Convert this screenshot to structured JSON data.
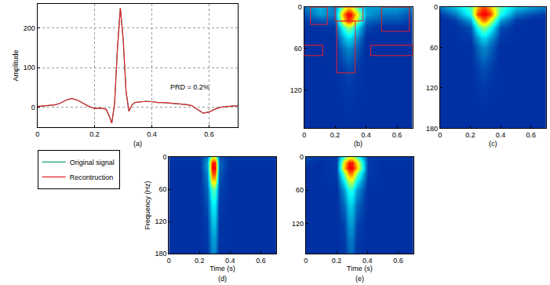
{
  "chart_data": [
    {
      "type": "line",
      "title": "(a)",
      "x": [
        0,
        0.02,
        0.04,
        0.06,
        0.08,
        0.1,
        0.12,
        0.14,
        0.16,
        0.18,
        0.2,
        0.22,
        0.24,
        0.25,
        0.26,
        0.27,
        0.28,
        0.29,
        0.3,
        0.31,
        0.32,
        0.33,
        0.34,
        0.36,
        0.38,
        0.4,
        0.42,
        0.44,
        0.46,
        0.48,
        0.5,
        0.52,
        0.54,
        0.56,
        0.58,
        0.6,
        0.62,
        0.64,
        0.66,
        0.68,
        0.7
      ],
      "series": [
        {
          "name": "Original signal",
          "color": "#1b9e77",
          "values": [
            2,
            3,
            5,
            6,
            10,
            18,
            22,
            18,
            10,
            2,
            -3,
            -2,
            -5,
            -20,
            -40,
            10,
            150,
            250,
            170,
            40,
            -10,
            5,
            12,
            14,
            15,
            14,
            12,
            12,
            11,
            10,
            9,
            7,
            4,
            -5,
            -15,
            -12,
            -5,
            0,
            2,
            3,
            4
          ]
        },
        {
          "name": "Recontruction",
          "color": "#e8202a",
          "values": [
            2,
            3,
            5,
            6,
            10,
            18,
            22,
            18,
            10,
            2,
            -3,
            -2,
            -5,
            -20,
            -40,
            10,
            150,
            250,
            170,
            40,
            -10,
            5,
            12,
            14,
            15,
            14,
            12,
            12,
            11,
            10,
            9,
            7,
            4,
            -5,
            -15,
            -12,
            -5,
            0,
            2,
            3,
            4
          ]
        }
      ],
      "xlim": [
        0,
        0.7
      ],
      "xticks": [
        0,
        0.2,
        0.4,
        0.6
      ],
      "ylim": [
        -50,
        260
      ],
      "yticks": [
        0,
        100,
        200
      ],
      "y_label": "Amplitude",
      "annotations": [
        {
          "text": "PRD = 0.2%",
          "x": 0.46,
          "y": 50
        }
      ],
      "grid": true,
      "legend": "lower left"
    },
    {
      "type": "heatmap",
      "title": "(b)",
      "x": [
        0,
        0.1,
        0.2,
        0.25,
        0.28,
        0.3,
        0.33,
        0.4,
        0.5,
        0.6,
        0.7
      ],
      "y": [
        0,
        10,
        20,
        30,
        45,
        60,
        90,
        120,
        150,
        180
      ],
      "cells": [
        [
          0.2,
          0.28,
          0.2,
          0.5,
          0.65,
          0.65,
          0.5,
          0.25,
          0.25,
          0.25,
          0.2
        ],
        [
          0.15,
          0.25,
          0.2,
          0.7,
          0.88,
          0.88,
          0.7,
          0.25,
          0.2,
          0.2,
          0.15
        ],
        [
          0.12,
          0.15,
          0.15,
          0.6,
          0.8,
          0.8,
          0.6,
          0.18,
          0.15,
          0.15,
          0.12
        ],
        [
          0.1,
          0.1,
          0.12,
          0.38,
          0.5,
          0.5,
          0.38,
          0.14,
          0.1,
          0.1,
          0.1
        ],
        [
          0.1,
          0.1,
          0.1,
          0.25,
          0.32,
          0.32,
          0.25,
          0.1,
          0.1,
          0.1,
          0.1
        ],
        [
          0.1,
          0.1,
          0.1,
          0.18,
          0.22,
          0.22,
          0.18,
          0.1,
          0.1,
          0.1,
          0.1
        ],
        [
          0.1,
          0.1,
          0.1,
          0.12,
          0.14,
          0.14,
          0.12,
          0.1,
          0.1,
          0.1,
          0.1
        ],
        [
          0.1,
          0.1,
          0.1,
          0.11,
          0.12,
          0.12,
          0.11,
          0.1,
          0.1,
          0.1,
          0.1
        ],
        [
          0.1,
          0.1,
          0.1,
          0.1,
          0.11,
          0.11,
          0.1,
          0.1,
          0.1,
          0.1,
          0.1
        ],
        [
          0.1,
          0.1,
          0.1,
          0.1,
          0.1,
          0.1,
          0.1,
          0.1,
          0.1,
          0.1,
          0.1
        ]
      ],
      "zlim": [
        0,
        1
      ],
      "xlim": [
        0,
        0.7
      ],
      "xticks": [
        0,
        0.2,
        0.4,
        0.6
      ],
      "ylim": [
        175,
        0
      ],
      "yticks": [
        0,
        60,
        120
      ],
      "regions": [
        {
          "x0": 0.04,
          "x1": 0.15,
          "y0": 0,
          "y1": 25
        },
        {
          "x0": 0,
          "x1": 0.12,
          "y0": 55,
          "y1": 70
        },
        {
          "x0": 0.2,
          "x1": 0.38,
          "y0": 0,
          "y1": 20
        },
        {
          "x0": 0.21,
          "x1": 0.33,
          "y0": 20,
          "y1": 95
        },
        {
          "x0": 0.5,
          "x1": 0.68,
          "y0": 0,
          "y1": 35
        },
        {
          "x0": 0.43,
          "x1": 0.7,
          "y0": 55,
          "y1": 70
        }
      ]
    },
    {
      "type": "heatmap",
      "title": "(c)",
      "x": [
        0,
        0.1,
        0.2,
        0.25,
        0.28,
        0.3,
        0.33,
        0.4,
        0.5,
        0.6,
        0.7
      ],
      "y": [
        0,
        10,
        20,
        30,
        45,
        60,
        90,
        120,
        150,
        180
      ],
      "cells": [
        [
          0.2,
          0.3,
          0.45,
          0.7,
          0.8,
          0.8,
          0.7,
          0.45,
          0.3,
          0.25,
          0.2
        ],
        [
          0.12,
          0.2,
          0.4,
          0.82,
          0.88,
          0.88,
          0.82,
          0.4,
          0.2,
          0.15,
          0.12
        ],
        [
          0.1,
          0.12,
          0.25,
          0.6,
          0.75,
          0.75,
          0.6,
          0.25,
          0.12,
          0.1,
          0.1
        ],
        [
          0.1,
          0.1,
          0.15,
          0.4,
          0.5,
          0.5,
          0.4,
          0.15,
          0.1,
          0.1,
          0.1
        ],
        [
          0.1,
          0.1,
          0.12,
          0.25,
          0.32,
          0.32,
          0.25,
          0.12,
          0.1,
          0.1,
          0.1
        ],
        [
          0.1,
          0.1,
          0.1,
          0.18,
          0.22,
          0.22,
          0.18,
          0.1,
          0.1,
          0.1,
          0.1
        ],
        [
          0.1,
          0.1,
          0.1,
          0.13,
          0.15,
          0.15,
          0.13,
          0.1,
          0.1,
          0.1,
          0.1
        ],
        [
          0.1,
          0.1,
          0.1,
          0.11,
          0.12,
          0.12,
          0.11,
          0.1,
          0.1,
          0.1,
          0.1
        ],
        [
          0.1,
          0.1,
          0.1,
          0.1,
          0.1,
          0.1,
          0.1,
          0.1,
          0.1,
          0.1,
          0.1
        ],
        [
          0.1,
          0.1,
          0.1,
          0.1,
          0.1,
          0.1,
          0.1,
          0.1,
          0.1,
          0.1,
          0.1
        ]
      ],
      "zlim": [
        0,
        1
      ],
      "xlim": [
        0,
        0.7
      ],
      "xticks": [
        0,
        0.2,
        0.4,
        0.6
      ],
      "ylim": [
        180,
        0
      ],
      "yticks": [
        0,
        60,
        120,
        180
      ]
    },
    {
      "type": "heatmap",
      "title": "(d)",
      "x": [
        0,
        0.1,
        0.2,
        0.25,
        0.28,
        0.3,
        0.33,
        0.4,
        0.5,
        0.6,
        0.7
      ],
      "y": [
        0,
        10,
        20,
        30,
        45,
        60,
        90,
        120,
        150,
        180
      ],
      "cells": [
        [
          0.12,
          0.12,
          0.12,
          0.2,
          0.6,
          0.6,
          0.15,
          0.12,
          0.12,
          0.12,
          0.12
        ],
        [
          0.1,
          0.1,
          0.1,
          0.25,
          0.85,
          0.85,
          0.18,
          0.1,
          0.1,
          0.1,
          0.1
        ],
        [
          0.1,
          0.1,
          0.1,
          0.25,
          0.88,
          0.88,
          0.18,
          0.1,
          0.1,
          0.1,
          0.1
        ],
        [
          0.1,
          0.1,
          0.1,
          0.22,
          0.8,
          0.8,
          0.16,
          0.1,
          0.1,
          0.1,
          0.1
        ],
        [
          0.1,
          0.1,
          0.1,
          0.2,
          0.65,
          0.65,
          0.15,
          0.1,
          0.1,
          0.1,
          0.1
        ],
        [
          0.1,
          0.1,
          0.1,
          0.18,
          0.45,
          0.45,
          0.14,
          0.1,
          0.1,
          0.1,
          0.1
        ],
        [
          0.1,
          0.1,
          0.1,
          0.15,
          0.35,
          0.35,
          0.12,
          0.1,
          0.1,
          0.1,
          0.1
        ],
        [
          0.1,
          0.1,
          0.1,
          0.13,
          0.3,
          0.3,
          0.11,
          0.1,
          0.1,
          0.1,
          0.1
        ],
        [
          0.1,
          0.1,
          0.1,
          0.12,
          0.25,
          0.25,
          0.11,
          0.1,
          0.1,
          0.1,
          0.1
        ],
        [
          0.1,
          0.1,
          0.1,
          0.11,
          0.22,
          0.22,
          0.1,
          0.1,
          0.1,
          0.1,
          0.1
        ]
      ],
      "zlim": [
        0,
        1
      ],
      "xlim": [
        0,
        0.7
      ],
      "xticks": [
        0,
        0.2,
        0.4,
        0.6
      ],
      "ylim": [
        180,
        0
      ],
      "yticks": [
        0,
        60,
        120,
        180
      ],
      "x_label": "Time (s)",
      "y_label": "Frequency (Hz)"
    },
    {
      "type": "heatmap",
      "title": "(e)",
      "x": [
        0,
        0.1,
        0.2,
        0.25,
        0.28,
        0.3,
        0.33,
        0.4,
        0.5,
        0.6,
        0.7
      ],
      "y": [
        0,
        10,
        20,
        30,
        45,
        60,
        90,
        120,
        150,
        180
      ],
      "cells": [
        [
          0.15,
          0.12,
          0.12,
          0.45,
          0.6,
          0.6,
          0.45,
          0.12,
          0.12,
          0.12,
          0.12
        ],
        [
          0.12,
          0.1,
          0.12,
          0.65,
          0.85,
          0.85,
          0.65,
          0.12,
          0.1,
          0.1,
          0.1
        ],
        [
          0.1,
          0.1,
          0.12,
          0.7,
          0.88,
          0.88,
          0.7,
          0.12,
          0.1,
          0.1,
          0.1
        ],
        [
          0.1,
          0.1,
          0.12,
          0.5,
          0.75,
          0.75,
          0.5,
          0.12,
          0.1,
          0.1,
          0.1
        ],
        [
          0.1,
          0.1,
          0.11,
          0.35,
          0.55,
          0.55,
          0.35,
          0.11,
          0.1,
          0.1,
          0.1
        ],
        [
          0.1,
          0.1,
          0.1,
          0.25,
          0.4,
          0.4,
          0.25,
          0.1,
          0.1,
          0.1,
          0.1
        ],
        [
          0.1,
          0.1,
          0.1,
          0.18,
          0.3,
          0.3,
          0.18,
          0.1,
          0.1,
          0.1,
          0.1
        ],
        [
          0.1,
          0.1,
          0.1,
          0.14,
          0.25,
          0.25,
          0.14,
          0.1,
          0.1,
          0.1,
          0.1
        ],
        [
          0.1,
          0.1,
          0.1,
          0.12,
          0.2,
          0.2,
          0.12,
          0.1,
          0.1,
          0.1,
          0.1
        ],
        [
          0.1,
          0.1,
          0.1,
          0.11,
          0.17,
          0.17,
          0.11,
          0.1,
          0.1,
          0.1,
          0.1
        ]
      ],
      "zlim": [
        0,
        1
      ],
      "xlim": [
        0,
        0.7
      ],
      "xticks": [
        0,
        0.2,
        0.4,
        0.6
      ],
      "ylim": [
        175,
        0
      ],
      "yticks": [
        0,
        60,
        120
      ],
      "x_label": "Time (s)"
    }
  ]
}
